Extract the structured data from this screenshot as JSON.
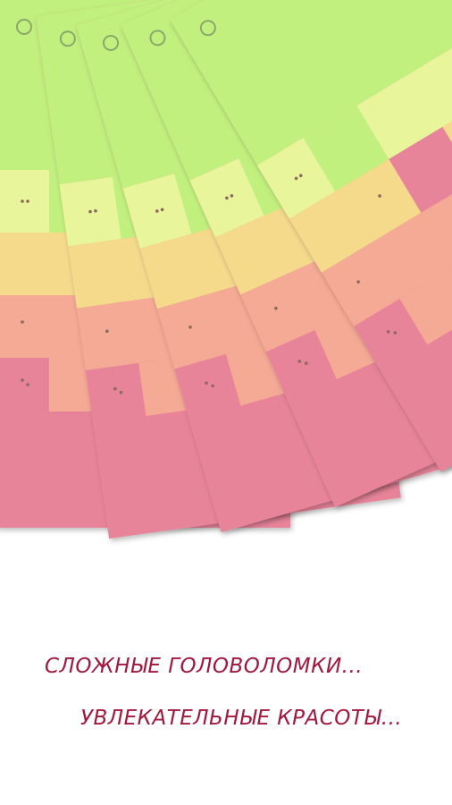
{
  "tagline": {
    "line1": "СЛОЖНЫЕ ГОЛОВОЛОМКИ...",
    "line2": "УВЛЕКАТЕЛЬНЫЕ КРАСОТЫ..."
  }
}
